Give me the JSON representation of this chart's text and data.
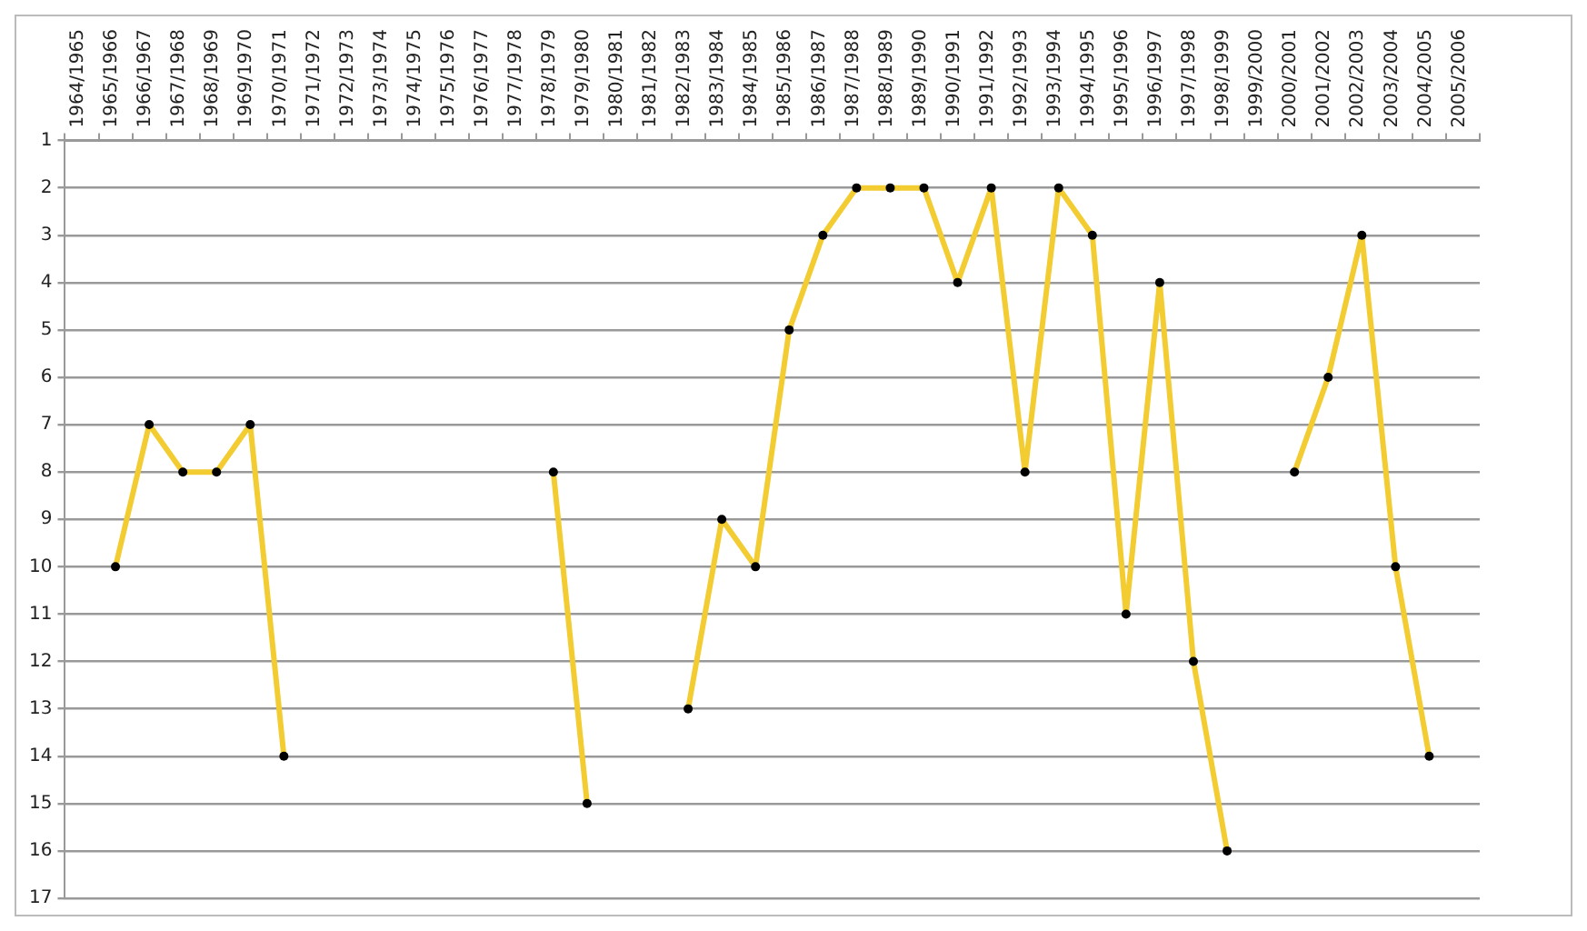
{
  "chart_data": {
    "type": "line",
    "categories": [
      "1964/1965",
      "1965/1966",
      "1966/1967",
      "1967/1968",
      "1968/1969",
      "1969/1970",
      "1970/1971",
      "1971/1972",
      "1972/1973",
      "1973/1974",
      "1974/1975",
      "1975/1976",
      "1976/1977",
      "1977/1978",
      "1978/1979",
      "1979/1980",
      "1980/1981",
      "1981/1982",
      "1982/1983",
      "1983/1984",
      "1984/1985",
      "1985/1986",
      "1986/1987",
      "1987/1988",
      "1988/1989",
      "1989/1990",
      "1990/1991",
      "1991/1992",
      "1992/1993",
      "1993/1994",
      "1994/1995",
      "1995/1996",
      "1996/1997",
      "1997/1998",
      "1998/1999",
      "1999/2000",
      "2000/2001",
      "2001/2002",
      "2002/2003",
      "2003/2004",
      "2004/2005",
      "2005/2006"
    ],
    "series": [
      {
        "type": "line",
        "marker": "none",
        "color": "#f2cc30",
        "values": [
          null,
          10,
          7,
          8,
          8,
          7,
          14,
          null,
          null,
          null,
          null,
          null,
          null,
          null,
          8,
          15,
          null,
          null,
          13,
          9,
          10,
          5,
          3,
          2,
          2,
          2,
          4,
          2,
          8,
          2,
          3,
          11,
          4,
          12,
          16,
          null,
          8,
          6,
          3,
          10,
          14,
          null
        ]
      },
      {
        "type": "scatter",
        "color": "#000000",
        "values": [
          null,
          10,
          7,
          8,
          8,
          7,
          14,
          null,
          null,
          null,
          null,
          null,
          null,
          null,
          8,
          15,
          null,
          null,
          13,
          9,
          10,
          5,
          3,
          2,
          2,
          2,
          4,
          2,
          8,
          2,
          3,
          11,
          4,
          12,
          16,
          null,
          8,
          6,
          3,
          10,
          14,
          null
        ]
      }
    ],
    "ylim": [
      17,
      1
    ],
    "yticks": [
      1,
      2,
      3,
      4,
      5,
      6,
      7,
      8,
      9,
      10,
      11,
      12,
      13,
      14,
      15,
      16,
      17
    ],
    "grid": "y",
    "legend": false,
    "marker": "circle",
    "line_style": "solid"
  }
}
